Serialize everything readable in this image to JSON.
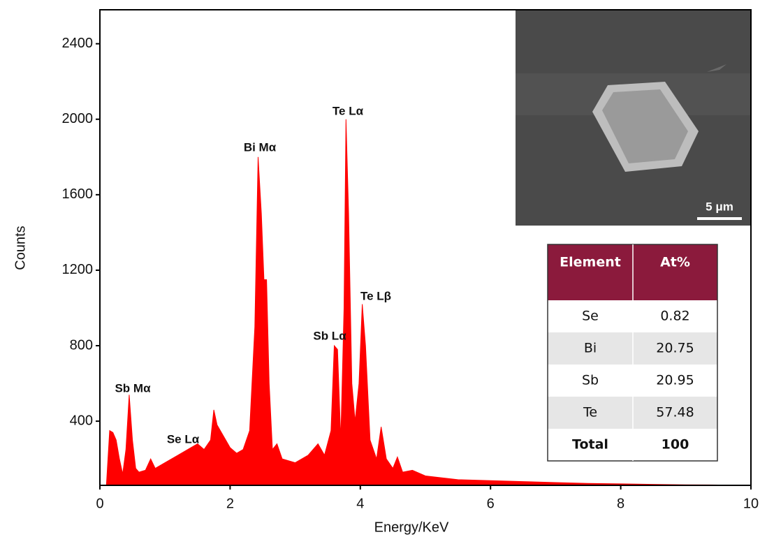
{
  "chart_data": {
    "type": "area",
    "x_label": "Energy/KeV",
    "y_label": "Counts",
    "color": "#ff0000",
    "x": [
      0.1,
      0.15,
      0.2,
      0.25,
      0.3,
      0.35,
      0.4,
      0.45,
      0.5,
      0.55,
      0.6,
      0.7,
      0.78,
      0.85,
      1.0,
      1.2,
      1.4,
      1.5,
      1.6,
      1.7,
      1.75,
      1.8,
      1.9,
      2.0,
      2.1,
      2.2,
      2.3,
      2.38,
      2.43,
      2.48,
      2.52,
      2.56,
      2.6,
      2.65,
      2.72,
      2.8,
      3.0,
      3.2,
      3.35,
      3.45,
      3.55,
      3.6,
      3.65,
      3.7,
      3.75,
      3.78,
      3.82,
      3.87,
      3.92,
      3.98,
      4.03,
      4.08,
      4.15,
      4.25,
      4.32,
      4.4,
      4.5,
      4.57,
      4.65,
      4.8,
      5.0,
      5.5,
      6.0,
      6.5,
      7.0,
      7.5,
      8.0,
      8.5,
      9.0,
      9.5,
      10
    ],
    "values": [
      60,
      350,
      340,
      300,
      200,
      120,
      250,
      540,
      300,
      150,
      130,
      140,
      200,
      150,
      180,
      220,
      260,
      280,
      250,
      300,
      460,
      380,
      320,
      260,
      230,
      250,
      350,
      900,
      1800,
      1500,
      1150,
      1150,
      600,
      250,
      280,
      200,
      180,
      220,
      280,
      220,
      350,
      800,
      780,
      300,
      1000,
      2000,
      1500,
      600,
      400,
      600,
      1020,
      800,
      300,
      200,
      370,
      200,
      150,
      210,
      130,
      140,
      110,
      90,
      85,
      80,
      75,
      70,
      68,
      65,
      63,
      62,
      60
    ],
    "xlim": [
      0,
      10
    ],
    "ylim": [
      60,
      2580
    ],
    "xticks": [
      0,
      2,
      4,
      6,
      8,
      10
    ],
    "yticks": [
      400,
      800,
      1200,
      1600,
      2000,
      2400
    ],
    "annotations": [
      "Sb Mα",
      "Se Lα",
      "Bi Mα",
      "Te Lα",
      "Sb Lα",
      "Te Lβ"
    ]
  },
  "inset": {
    "scale_bar": "5 μm"
  },
  "table": {
    "header": [
      "Element",
      "At%"
    ],
    "rows": [
      [
        "Se",
        "0.82"
      ],
      [
        "Bi",
        "20.75"
      ],
      [
        "Sb",
        "20.95"
      ],
      [
        "Te",
        "57.48"
      ],
      [
        "Total",
        "100"
      ]
    ]
  }
}
